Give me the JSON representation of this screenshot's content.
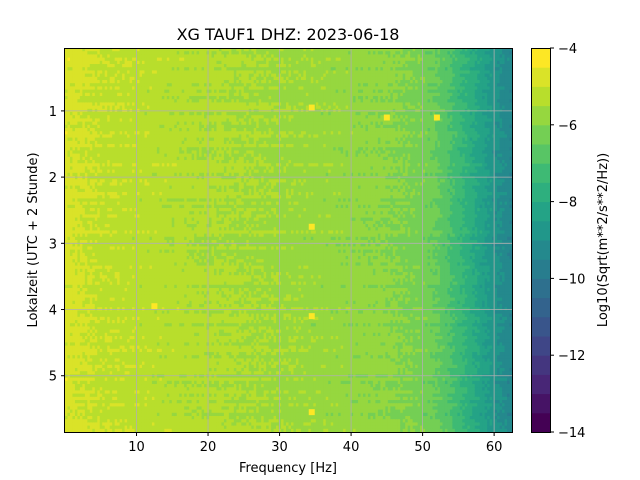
{
  "chart_data": {
    "type": "heatmap",
    "title": "XG TAUF1  DHZ: 2023-06-18",
    "xlabel": "Frequency [Hz]",
    "ylabel": "Lokalzeit (UTC + 2 Stunde)",
    "xlim": [
      0,
      62.5
    ],
    "ylim": [
      5.85,
      0.05
    ],
    "y_inverted": true,
    "x_ticks": [
      "10",
      "20",
      "30",
      "40",
      "50",
      "60"
    ],
    "x_tick_values": [
      10,
      20,
      30,
      40,
      50,
      60
    ],
    "y_ticks": [
      "1",
      "2",
      "3",
      "4",
      "5"
    ],
    "y_tick_values": [
      1,
      2,
      3,
      4,
      5
    ],
    "grid": true,
    "colormap": "viridis",
    "colorbar": {
      "label": "Log10(Sqrt(m**2/s**2/Hz))",
      "min": -14,
      "max": -4,
      "ticks": [
        "−4",
        "−6",
        "−8",
        "−10",
        "−12",
        "−14"
      ],
      "tick_values": [
        -4,
        -6,
        -8,
        -10,
        -12,
        -14
      ],
      "levels": 20
    },
    "frequency_profile": {
      "frequency_hz": [
        0,
        5,
        10,
        20,
        30,
        40,
        45,
        50,
        52,
        54,
        56,
        58,
        60,
        62.5
      ],
      "log10_amplitude": [
        -4.8,
        -5.1,
        -5.2,
        -5.4,
        -5.6,
        -5.8,
        -5.9,
        -6.2,
        -6.5,
        -7.0,
        -7.6,
        -8.2,
        -8.8,
        -9.4
      ]
    },
    "bright_spots": [
      {
        "frequency_hz": 34.5,
        "time_h": 0.95
      },
      {
        "frequency_hz": 45.0,
        "time_h": 1.1
      },
      {
        "frequency_hz": 52.0,
        "time_h": 1.1
      },
      {
        "frequency_hz": 34.5,
        "time_h": 2.75
      },
      {
        "frequency_hz": 12.5,
        "time_h": 3.95
      },
      {
        "frequency_hz": 34.5,
        "time_h": 4.1
      },
      {
        "frequency_hz": 34.5,
        "time_h": 5.55
      }
    ]
  }
}
